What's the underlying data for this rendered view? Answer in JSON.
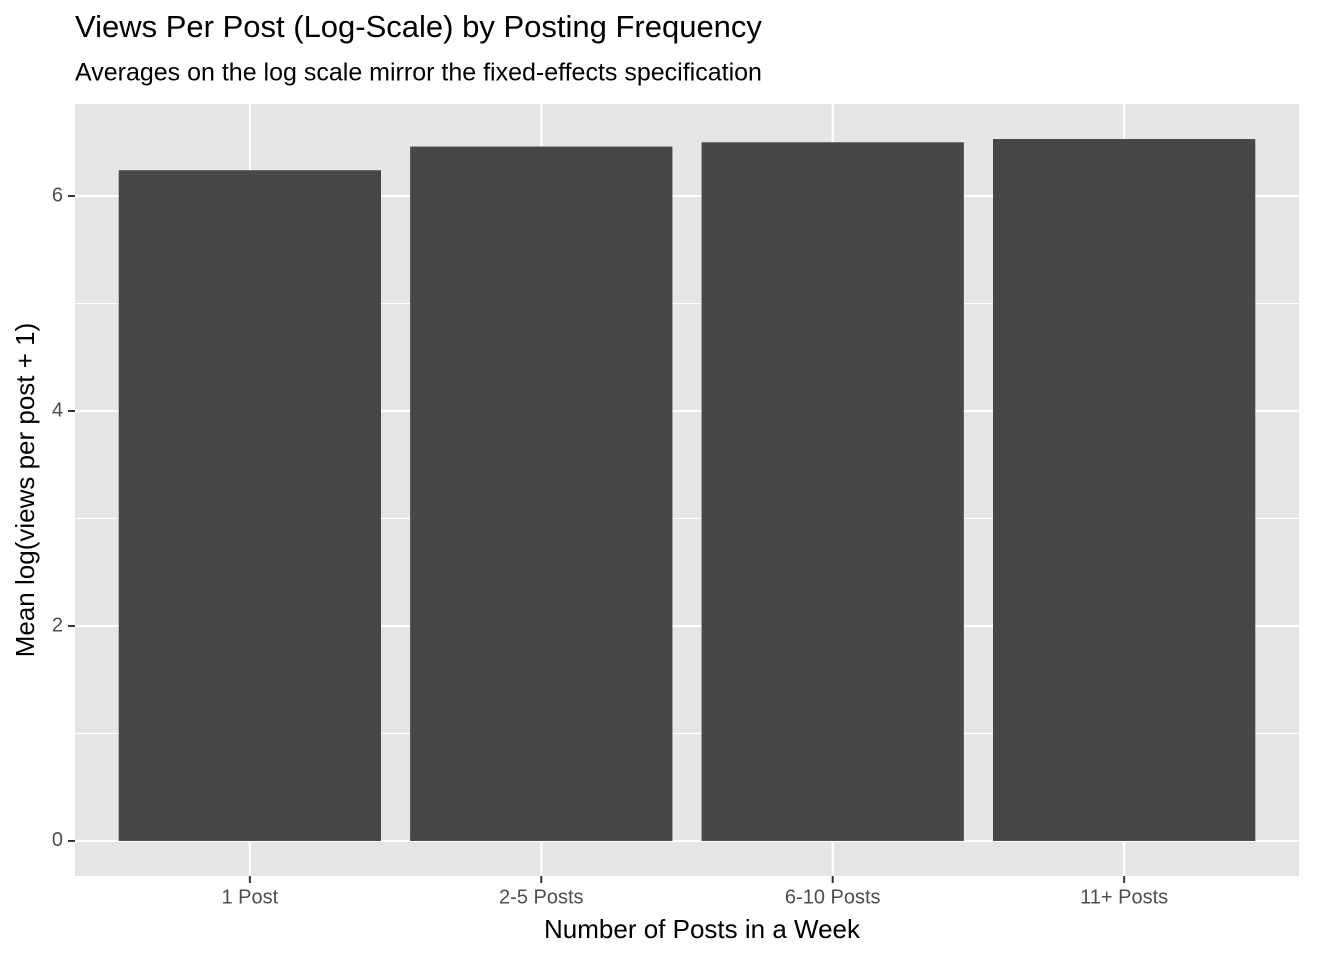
{
  "chart_data": {
    "type": "bar",
    "title": "Views Per Post (Log-Scale) by Posting Frequency",
    "subtitle": "Averages on the log scale mirror the fixed-effects specification",
    "x_label": "Number of Posts in a Week",
    "y_label": "Mean log(views per post + 1)",
    "categories": [
      "1 Post",
      "2-5 Posts",
      "6-10 Posts",
      "11+ Posts"
    ],
    "values": [
      6.24,
      6.46,
      6.5,
      6.53
    ],
    "color": "#474747",
    "ylim": [
      -0.326,
      6.856
    ],
    "yticks": [
      0,
      2,
      4,
      6
    ],
    "grid": true,
    "minor_grid": true
  }
}
